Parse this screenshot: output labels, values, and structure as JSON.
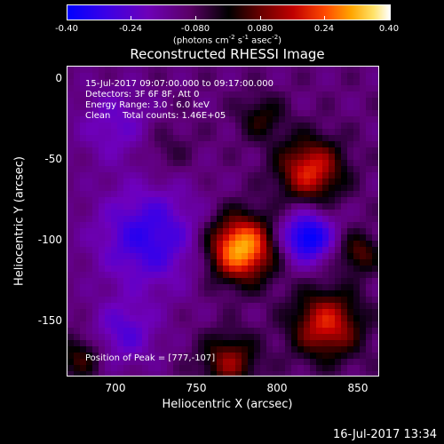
{
  "chart_data": {
    "type": "heatmap",
    "title": "Reconstructed RHESSI Image",
    "xlabel": "Heliocentric X (arcsec)",
    "ylabel": "Heliocentric Y (arcsec)",
    "xlim": [
      670,
      862
    ],
    "ylim": [
      -187,
      7
    ],
    "xticks": [
      "700",
      "750",
      "800",
      "850"
    ],
    "yticks": [
      "0",
      "-50",
      "-100",
      "-150"
    ],
    "colorbar": {
      "range": [
        -0.4,
        0.4
      ],
      "ticks": [
        "-0.40",
        "-0.24",
        "-0.080",
        "0.080",
        "0.24",
        "0.40"
      ],
      "unit_text": "(photons cm",
      "unit_sup1": "-2",
      "unit_mid1": " s",
      "unit_sup2": "-1",
      "unit_mid2": " asec",
      "unit_sup3": "-2",
      "unit_end": ")"
    },
    "annotations": {
      "line1": "15-Jul-2017 09:07:00.000 to 09:17:00.000",
      "line2": "Detectors: 3F 6F 8F, Att 0",
      "line3": "Energy Range: 3.0 - 6.0 keV",
      "line4_left": "Clean",
      "line4_right": "Total counts: 1.46E+05"
    },
    "peak_label": "Position of Peak = [777,-107]",
    "peak": [
      777,
      -107
    ],
    "sources": [
      {
        "x": 777,
        "y": -107,
        "amp": 0.42,
        "sigma": 14
      },
      {
        "x": 820,
        "y": -58,
        "amp": 0.28,
        "sigma": 14
      },
      {
        "x": 830,
        "y": -155,
        "amp": 0.27,
        "sigma": 15
      },
      {
        "x": 850,
        "y": -110,
        "amp": 0.16,
        "sigma": 9
      },
      {
        "x": 770,
        "y": -178,
        "amp": 0.2,
        "sigma": 12
      },
      {
        "x": 790,
        "y": -25,
        "amp": 0.12,
        "sigma": 10
      },
      {
        "x": 678,
        "y": -175,
        "amp": 0.14,
        "sigma": 10
      },
      {
        "x": 730,
        "y": -45,
        "amp": 0.06,
        "sigma": 12
      },
      {
        "x": 720,
        "y": -100,
        "amp": -0.22,
        "sigma": 22
      },
      {
        "x": 818,
        "y": -100,
        "amp": -0.32,
        "sigma": 11
      },
      {
        "x": 700,
        "y": -30,
        "amp": -0.12,
        "sigma": 16
      },
      {
        "x": 705,
        "y": -160,
        "amp": -0.15,
        "sigma": 14
      }
    ]
  },
  "timestamp": "16-Jul-2017 13:34"
}
